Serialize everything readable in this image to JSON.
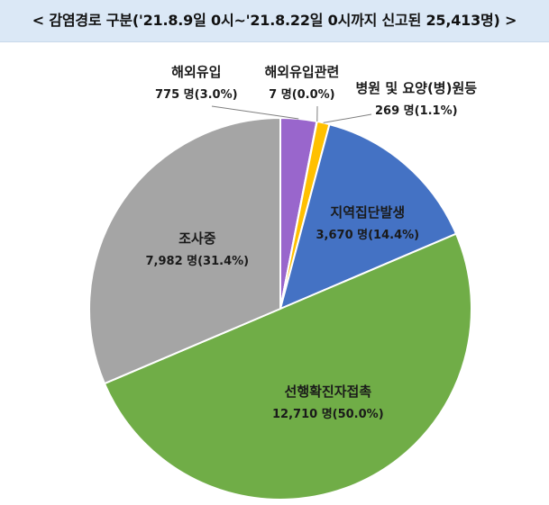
{
  "title": "< 감염경로 구분('21.8.9일 0시~'21.8.22일 0시까지 신고된 25,413명) >",
  "chart_data": {
    "type": "pie",
    "start": "12 o'clock",
    "direction": "clockwise",
    "slices": [
      {
        "name": "해외유입",
        "count": 775,
        "label_value": "775 명(3.0%)",
        "color": "#9966cc"
      },
      {
        "name": "해외유입관련",
        "count": 7,
        "label_value": "7 명(0.0%)",
        "color": "#ffc000"
      },
      {
        "name": "병원 및 요양(병)원등",
        "count": 269,
        "label_value": "269 명(1.1%)",
        "color": "#ffc000"
      },
      {
        "name": "지역집단발생",
        "count": 3670,
        "label_value": "3,670 명(14.4%)",
        "color": "#4472c4"
      },
      {
        "name": "선행확진자접촉",
        "count": 12710,
        "label_value": "12,710 명(50.0%)",
        "color": "#70ad47"
      },
      {
        "name": "조사중",
        "count": 7982,
        "label_value": "7,982 명(31.4%)",
        "color": "#a5a5a5"
      }
    ]
  }
}
